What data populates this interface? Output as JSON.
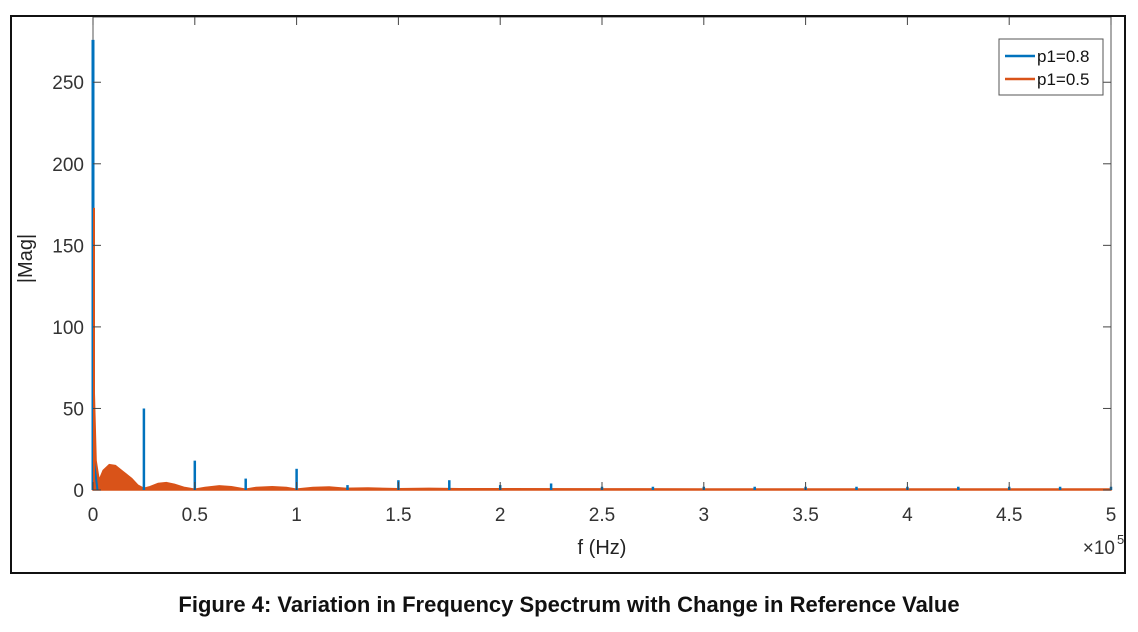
{
  "caption": "Figure 4: Variation in Frequency Spectrum with Change in Reference Value",
  "chart_data": {
    "type": "line",
    "xlabel": "f (Hz)",
    "ylabel": "|Mag|",
    "x_exponent_label": "×10",
    "x_exponent": "5",
    "xlim": [
      0,
      500000
    ],
    "ylim": [
      0,
      290
    ],
    "x_ticks": [
      0,
      50000,
      100000,
      150000,
      200000,
      250000,
      300000,
      350000,
      400000,
      450000,
      500000
    ],
    "x_tick_labels": [
      "0",
      "0.5",
      "1",
      "1.5",
      "2",
      "2.5",
      "3",
      "3.5",
      "4",
      "4.5",
      "5"
    ],
    "y_ticks": [
      0,
      50,
      100,
      150,
      200,
      250
    ],
    "y_tick_labels": [
      "0",
      "50",
      "100",
      "150",
      "200",
      "250"
    ],
    "grid": false,
    "legend_position": "top-right",
    "series": [
      {
        "name": "p1=0.8",
        "color": "#0072BD",
        "spikes": [
          {
            "x": 0,
            "y": 276
          },
          {
            "x": 25000,
            "y": 50
          },
          {
            "x": 50000,
            "y": 18
          },
          {
            "x": 75000,
            "y": 7
          },
          {
            "x": 100000,
            "y": 13
          },
          {
            "x": 125000,
            "y": 3
          },
          {
            "x": 150000,
            "y": 6
          },
          {
            "x": 175000,
            "y": 6
          },
          {
            "x": 200000,
            "y": 3
          },
          {
            "x": 225000,
            "y": 4
          },
          {
            "x": 250000,
            "y": 2
          },
          {
            "x": 275000,
            "y": 2
          },
          {
            "x": 300000,
            "y": 2
          },
          {
            "x": 325000,
            "y": 2
          },
          {
            "x": 350000,
            "y": 2
          },
          {
            "x": 375000,
            "y": 2
          },
          {
            "x": 400000,
            "y": 2
          },
          {
            "x": 425000,
            "y": 2
          },
          {
            "x": 450000,
            "y": 2
          },
          {
            "x": 475000,
            "y": 2
          },
          {
            "x": 500000,
            "y": 2
          }
        ]
      },
      {
        "name": "p1=0.5",
        "color": "#D95319",
        "envelope": [
          [
            0,
            173
          ],
          [
            600,
            60
          ],
          [
            1500,
            18
          ],
          [
            3000,
            6
          ],
          [
            5000,
            12
          ],
          [
            8000,
            15.5
          ],
          [
            11000,
            15
          ],
          [
            15000,
            11
          ],
          [
            19000,
            7
          ],
          [
            22000,
            3
          ],
          [
            25000,
            1
          ],
          [
            28000,
            2
          ],
          [
            32000,
            4
          ],
          [
            36000,
            4.5
          ],
          [
            40000,
            3.5
          ],
          [
            45000,
            1.5
          ],
          [
            50000,
            0.5
          ],
          [
            55000,
            1.5
          ],
          [
            62000,
            2.5
          ],
          [
            68000,
            2
          ],
          [
            75000,
            0.5
          ],
          [
            80000,
            1.5
          ],
          [
            88000,
            2
          ],
          [
            95000,
            1.5
          ],
          [
            100000,
            0.5
          ],
          [
            108000,
            1.5
          ],
          [
            116000,
            1.8
          ],
          [
            124000,
            1
          ],
          [
            135000,
            1.2
          ],
          [
            150000,
            0.8
          ],
          [
            165000,
            1
          ],
          [
            180000,
            0.8
          ],
          [
            200000,
            0.8
          ],
          [
            250000,
            0.7
          ],
          [
            300000,
            0.6
          ],
          [
            350000,
            0.6
          ],
          [
            400000,
            0.6
          ],
          [
            450000,
            0.6
          ],
          [
            500000,
            0.6
          ]
        ]
      }
    ]
  }
}
